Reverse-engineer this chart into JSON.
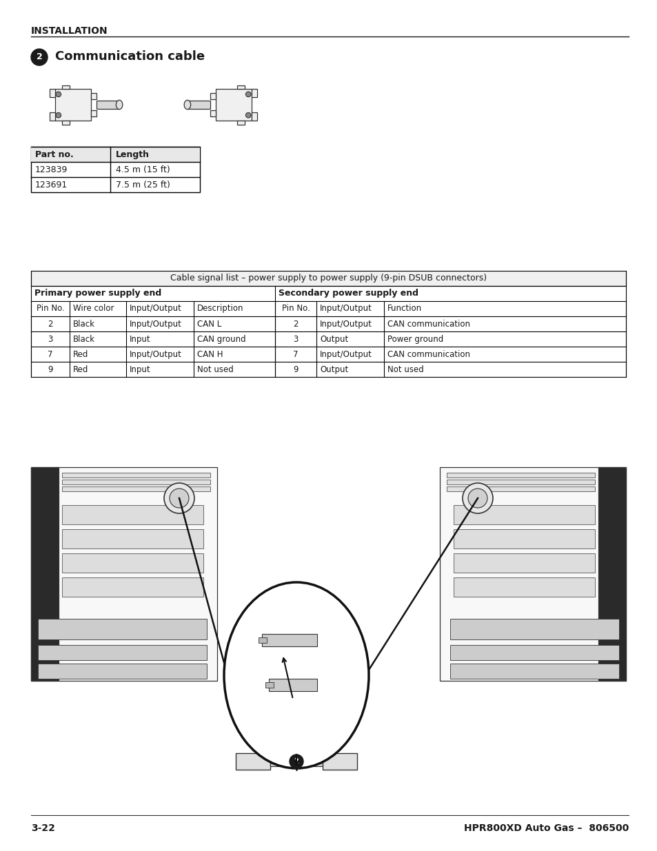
{
  "page_title": "INSTALLATION",
  "section_number": "2",
  "section_title": "Communication cable",
  "parts_table": {
    "headers": [
      "Part no.",
      "Length"
    ],
    "rows": [
      [
        "123839",
        "4.5 m (15 ft)"
      ],
      [
        "123691",
        "7.5 m (25 ft)"
      ]
    ]
  },
  "signal_table": {
    "title": "Cable signal list – power supply to power supply (9-pin DSUB connectors)",
    "primary_header": "Primary power supply end",
    "secondary_header": "Secondary power supply end",
    "col_headers_primary": [
      "Pin No.",
      "Wire color",
      "Input/Output",
      "Description"
    ],
    "col_headers_secondary": [
      "Pin No.",
      "Input/Output",
      "Function"
    ],
    "rows": [
      [
        "2",
        "Black",
        "Input/Output",
        "CAN L",
        "2",
        "Input/Output",
        "CAN communication"
      ],
      [
        "3",
        "Black",
        "Input",
        "CAN ground",
        "3",
        "Output",
        "Power ground"
      ],
      [
        "7",
        "Red",
        "Input/Output",
        "CAN H",
        "7",
        "Input/Output",
        "CAN communication"
      ],
      [
        "9",
        "Red",
        "Input",
        "Not used",
        "9",
        "Output",
        "Not used"
      ]
    ]
  },
  "footer_left": "3-22",
  "footer_right": "HPR800XD Auto Gas –  806500",
  "bg_color": "#ffffff",
  "text_color": "#1a1a1a"
}
